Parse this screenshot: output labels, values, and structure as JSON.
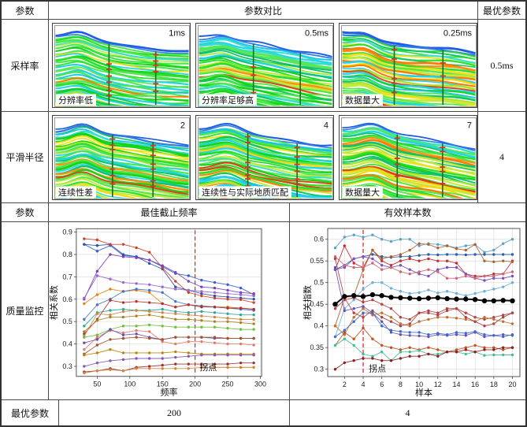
{
  "table": {
    "header1": {
      "col_param": "参数",
      "col_compare": "参数对比",
      "col_optimal": "最优参数"
    },
    "rows": [
      {
        "label": "采样率",
        "optimal": "0.5ms",
        "panels": [
          {
            "tag": "1ms",
            "caption": "分辨率低"
          },
          {
            "tag": "0.5ms",
            "caption": "分辨率足够高"
          },
          {
            "tag": "0.25ms",
            "caption": "数据量大"
          }
        ]
      },
      {
        "label": "平滑半径",
        "optimal": "4",
        "panels": [
          {
            "tag": "2",
            "caption": "连续性差"
          },
          {
            "tag": "4",
            "caption": "连续性与实际地质匹配"
          },
          {
            "tag": "7",
            "caption": "数据量大"
          }
        ]
      }
    ],
    "header2": {
      "col_param": "参数",
      "col_left": "最佳截止频率",
      "col_right": "有效样本数"
    },
    "monitor_label": "质量监控",
    "footer": {
      "label": "最优参数",
      "left_value": "200",
      "right_value": "4"
    }
  },
  "colors": {
    "vline": "#e02020",
    "grid": "#dddddd",
    "well": "#1a6e1a",
    "tickred": "#e03020",
    "blue": [
      "#1f5fe0",
      "#2e7de6"
    ],
    "cyan": [
      "#22d4e8",
      "#35e0c8",
      "#19c3f0"
    ],
    "green": [
      "#17d417",
      "#2ee02e",
      "#4ae84a",
      "#0fc46a",
      "#57e657"
    ],
    "yellowgreen": [
      "#a8e62e",
      "#c6e838"
    ],
    "yellow": [
      "#f0e018",
      "#ffd400"
    ],
    "orange": [
      "#ff9012",
      "#ff7a00"
    ],
    "red": [
      "#f03018",
      "#e04414"
    ]
  },
  "chart_data": [
    {
      "type": "line",
      "title": "最佳截止频率",
      "xlabel": "频率",
      "ylabel": "相关系数",
      "x": [
        30,
        50,
        70,
        90,
        110,
        130,
        150,
        170,
        190,
        210,
        230,
        250,
        270,
        290
      ],
      "xticks": [
        50,
        100,
        150,
        200,
        250,
        300
      ],
      "yticks": [
        0.3,
        0.4,
        0.5,
        0.6,
        0.7,
        0.8,
        0.9
      ],
      "xlim": [
        18,
        302
      ],
      "ylim": [
        0.255,
        0.915
      ],
      "grid": true,
      "vline": 200,
      "annotation": {
        "text": "拐点",
        "x": 207,
        "y": 0.283
      },
      "series": [
        {
          "color": "#3a5fcd",
          "values": [
            0.845,
            0.815,
            0.84,
            0.795,
            0.79,
            0.775,
            0.745,
            0.715,
            0.705,
            0.685,
            0.675,
            0.665,
            0.65,
            0.62
          ]
        },
        {
          "color": "#2d4fa8",
          "values": [
            0.845,
            0.84,
            0.845,
            0.8,
            0.79,
            0.76,
            0.735,
            0.655,
            0.64,
            0.625,
            0.615,
            0.61,
            0.605,
            0.6
          ]
        },
        {
          "color": "#cc4125",
          "values": [
            0.87,
            0.865,
            0.845,
            0.845,
            0.83,
            0.81,
            0.74,
            0.68,
            0.63,
            0.615,
            0.605,
            0.6,
            0.598,
            0.585
          ]
        },
        {
          "color": "#7b3fbf",
          "values": [
            0.6,
            0.725,
            0.8,
            0.79,
            0.785,
            0.775,
            0.75,
            0.72,
            0.68,
            0.655,
            0.65,
            0.64,
            0.63,
            0.625
          ]
        },
        {
          "color": "#9966cc",
          "values": [
            0.605,
            0.705,
            0.69,
            0.675,
            0.67,
            0.665,
            0.655,
            0.645,
            0.64,
            0.635,
            0.63,
            0.625,
            0.62,
            0.615
          ]
        },
        {
          "color": "#e08214",
          "values": [
            0.58,
            0.62,
            0.645,
            0.635,
            0.64,
            0.63,
            0.58,
            0.565,
            0.575,
            0.57,
            0.565,
            0.565,
            0.56,
            0.555
          ]
        },
        {
          "color": "#4472c4",
          "values": [
            0.51,
            0.575,
            0.6,
            0.635,
            0.645,
            0.64,
            0.63,
            0.59,
            0.575,
            0.57,
            0.565,
            0.56,
            0.555,
            0.55
          ]
        },
        {
          "color": "#2aa8a0",
          "values": [
            0.48,
            0.54,
            0.55,
            0.555,
            0.55,
            0.55,
            0.555,
            0.545,
            0.54,
            0.545,
            0.54,
            0.535,
            0.53,
            0.53
          ]
        },
        {
          "color": "#b03030",
          "values": [
            0.445,
            0.51,
            0.595,
            0.585,
            0.59,
            0.585,
            0.58,
            0.565,
            0.575,
            0.565,
            0.565,
            0.56,
            0.56,
            0.555
          ]
        },
        {
          "color": "#cc8844",
          "values": [
            0.435,
            0.535,
            0.53,
            0.545,
            0.55,
            0.545,
            0.54,
            0.535,
            0.53,
            0.525,
            0.52,
            0.515,
            0.51,
            0.51
          ]
        },
        {
          "color": "#a88420",
          "values": [
            0.455,
            0.505,
            0.52,
            0.52,
            0.525,
            0.53,
            0.52,
            0.51,
            0.51,
            0.505,
            0.5,
            0.5,
            0.495,
            0.49
          ]
        },
        {
          "color": "#6fbf3f",
          "values": [
            0.43,
            0.44,
            0.465,
            0.48,
            0.48,
            0.485,
            0.48,
            0.475,
            0.475,
            0.475,
            0.475,
            0.47,
            0.465,
            0.465
          ]
        },
        {
          "color": "#e07b6a",
          "values": [
            0.375,
            0.43,
            0.46,
            0.45,
            0.46,
            0.455,
            0.41,
            0.4,
            0.41,
            0.41,
            0.405,
            0.4,
            0.4,
            0.395
          ]
        },
        {
          "color": "#6a4fb0",
          "values": [
            0.405,
            0.42,
            0.465,
            0.44,
            0.445,
            0.43,
            0.42,
            0.43,
            0.43,
            0.43,
            0.425,
            0.425,
            0.425,
            0.425
          ]
        },
        {
          "color": "#a0522d",
          "values": [
            0.355,
            0.395,
            0.42,
            0.425,
            0.43,
            0.425,
            0.42,
            0.43,
            0.43,
            0.43,
            0.43,
            0.425,
            0.425,
            0.425
          ]
        },
        {
          "color": "#b8860b",
          "values": [
            0.35,
            0.36,
            0.375,
            0.36,
            0.36,
            0.36,
            0.36,
            0.365,
            0.36,
            0.355,
            0.355,
            0.355,
            0.355,
            0.355
          ]
        },
        {
          "color": "#8855bb",
          "values": [
            0.3,
            0.315,
            0.325,
            0.33,
            0.335,
            0.335,
            0.335,
            0.34,
            0.345,
            0.35,
            0.35,
            0.35,
            0.35,
            0.35
          ]
        },
        {
          "color": "#993333",
          "values": [
            0.275,
            0.28,
            0.29,
            0.28,
            0.295,
            0.3,
            0.305,
            0.31,
            0.31,
            0.31,
            0.31,
            0.31,
            0.315,
            0.315
          ]
        },
        {
          "color": "#d2843a",
          "values": [
            0.27,
            0.28,
            0.285,
            0.28,
            0.29,
            0.29,
            0.29,
            0.29,
            0.29,
            0.295,
            0.295,
            0.295,
            0.295,
            0.295
          ]
        }
      ]
    },
    {
      "type": "line",
      "title": "有效样本数",
      "xlabel": "样本",
      "ylabel": "相关指数",
      "x": [
        1,
        2,
        3,
        4,
        5,
        6,
        7,
        8,
        9,
        10,
        11,
        12,
        13,
        14,
        15,
        16,
        17,
        18,
        19,
        20
      ],
      "xticks": [
        2,
        4,
        6,
        8,
        10,
        12,
        14,
        16,
        18,
        20
      ],
      "yticks": [
        0.3,
        0.35,
        0.4,
        0.45,
        0.5,
        0.55,
        0.6
      ],
      "xlim": [
        0.2,
        20.8
      ],
      "ylim": [
        0.283,
        0.625
      ],
      "grid": true,
      "vline": 4,
      "annotation": {
        "text": "拐点",
        "x": 4.6,
        "y": 0.295
      },
      "series": [
        {
          "color": "#5aa0c8",
          "values": [
            0.58,
            0.605,
            0.61,
            0.605,
            0.61,
            0.6,
            0.595,
            0.6,
            0.6,
            0.585,
            0.59,
            0.588,
            0.585,
            0.58,
            0.585,
            0.588,
            0.57,
            0.575,
            0.59,
            0.6
          ]
        },
        {
          "color": "#2d5fa8",
          "values": [
            0.53,
            0.54,
            0.555,
            0.56,
            0.565,
            0.56,
            0.558,
            0.56,
            0.56,
            0.563,
            0.565,
            0.564,
            0.565,
            0.565,
            0.564,
            0.565,
            0.565,
            0.565,
            0.565,
            0.565
          ]
        },
        {
          "color": "#c03030",
          "values": [
            0.53,
            0.585,
            0.545,
            0.535,
            0.575,
            0.55,
            0.54,
            0.55,
            0.555,
            0.55,
            0.555,
            0.55,
            0.55,
            0.545,
            0.52,
            0.515,
            0.515,
            0.52,
            0.52,
            0.55
          ]
        },
        {
          "color": "#b06030",
          "values": [
            0.4,
            0.465,
            0.47,
            0.53,
            0.575,
            0.555,
            0.56,
            0.565,
            0.575,
            0.59,
            0.588,
            0.58,
            0.585,
            0.578,
            0.575,
            0.588,
            0.55,
            0.548,
            0.55,
            0.548
          ]
        },
        {
          "color": "#7b4fbf",
          "values": [
            0.53,
            0.535,
            0.555,
            0.56,
            0.555,
            0.54,
            0.535,
            0.54,
            0.53,
            0.52,
            0.515,
            0.53,
            0.535,
            0.535,
            0.52,
            0.51,
            0.505,
            0.51,
            0.51,
            0.515
          ]
        },
        {
          "color": "#cc6677",
          "values": [
            0.56,
            0.54,
            0.535,
            0.535,
            0.545,
            0.53,
            0.535,
            0.525,
            0.52,
            0.525,
            0.53,
            0.525,
            0.51,
            0.51,
            0.515,
            0.51,
            0.515,
            0.515,
            0.52,
            0.525
          ]
        },
        {
          "color": "#6ab0dc",
          "values": [
            0.375,
            0.44,
            0.46,
            0.485,
            0.5,
            0.5,
            0.487,
            0.48,
            0.475,
            0.477,
            0.483,
            0.476,
            0.48,
            0.475,
            0.47,
            0.475,
            0.48,
            0.485,
            0.49,
            0.5
          ]
        },
        {
          "color": "#b54040",
          "values": [
            0.44,
            0.46,
            0.465,
            0.455,
            0.46,
            0.45,
            0.44,
            0.42,
            0.415,
            0.43,
            0.435,
            0.43,
            0.44,
            0.44,
            0.43,
            0.42,
            0.415,
            0.42,
            0.425,
            0.43
          ]
        },
        {
          "color": "#c07030",
          "values": [
            0.4,
            0.38,
            0.42,
            0.44,
            0.425,
            0.43,
            0.42,
            0.405,
            0.4,
            0.41,
            0.415,
            0.42,
            0.42,
            0.418,
            0.415,
            0.41,
            0.42,
            0.415,
            0.41,
            0.405
          ]
        },
        {
          "color": "#6a4fb0",
          "values": [
            0.535,
            0.435,
            0.44,
            0.445,
            0.43,
            0.41,
            0.385,
            0.38,
            0.378,
            0.377,
            0.375,
            0.38,
            0.378,
            0.38,
            0.378,
            0.385,
            0.375,
            0.378,
            0.38,
            0.378
          ]
        },
        {
          "color": "#3a6bd0",
          "values": [
            0.375,
            0.39,
            0.41,
            0.43,
            0.43,
            0.4,
            0.39,
            0.387,
            0.385,
            0.385,
            0.38,
            0.383,
            0.38,
            0.385,
            0.383,
            0.387,
            0.38,
            0.378,
            0.375,
            0.38
          ]
        },
        {
          "color": "#c05020",
          "values": [
            0.355,
            0.385,
            0.37,
            0.395,
            0.37,
            0.355,
            0.35,
            0.345,
            0.35,
            0.345,
            0.35,
            0.345,
            0.34,
            0.345,
            0.35,
            0.355,
            0.35,
            0.35,
            0.345,
            0.35
          ]
        },
        {
          "color": "#3fbf8f",
          "values": [
            0.355,
            0.37,
            0.355,
            0.335,
            0.33,
            0.34,
            0.32,
            0.34,
            0.34,
            0.343,
            0.335,
            0.335,
            0.34,
            0.34,
            0.335,
            0.34,
            0.332,
            0.333,
            0.333,
            0.333
          ]
        },
        {
          "color": "#8b2020",
          "values": [
            0.3,
            0.315,
            0.32,
            0.325,
            0.325,
            0.32,
            0.32,
            0.325,
            0.33,
            0.33,
            0.335,
            0.33,
            0.34,
            0.34,
            0.345,
            0.34,
            0.345,
            0.345,
            0.35,
            0.35
          ]
        },
        {
          "color": "#aa4444",
          "values": [
            0.555,
            0.465,
            0.43,
            0.42,
            0.435,
            0.42,
            0.41,
            0.4,
            0.405,
            0.43,
            0.43,
            0.425,
            0.435,
            0.44,
            0.42,
            0.41,
            0.4,
            0.405,
            0.42,
            0.43
          ]
        },
        {
          "color": "#000000",
          "width": 2,
          "marker": 3.2,
          "values": [
            0.45,
            0.468,
            0.47,
            0.468,
            0.472,
            0.47,
            0.466,
            0.465,
            0.464,
            0.463,
            0.464,
            0.465,
            0.463,
            0.462,
            0.462,
            0.461,
            0.458,
            0.458,
            0.459,
            0.458
          ]
        }
      ]
    }
  ]
}
